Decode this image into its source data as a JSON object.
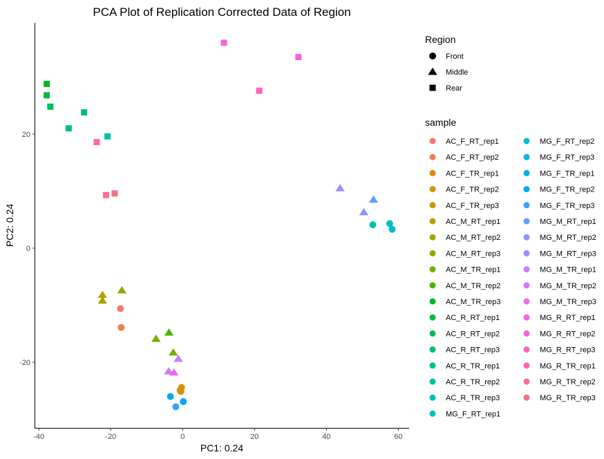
{
  "chart_data": {
    "type": "scatter",
    "title": "PCA Plot of Replication Corrected Data of Region",
    "xlabel": "PC1: 0.24",
    "ylabel": "PC2: 0.24",
    "xlim": [
      -41,
      63
    ],
    "ylim": [
      -31.5,
      39.5
    ],
    "xticks": [
      -40,
      -20,
      0,
      20,
      40,
      60
    ],
    "yticks": [
      -20,
      0,
      20
    ],
    "grid": false,
    "shape_legend": {
      "title": "Region",
      "entries": [
        {
          "label": "Front",
          "shape": "circle"
        },
        {
          "label": "Middle",
          "shape": "triangle"
        },
        {
          "label": "Rear",
          "shape": "square"
        }
      ]
    },
    "color_legend": {
      "title": "sample",
      "placement": "right",
      "columns": 2,
      "entries": [
        {
          "label": "AC_F_RT_rep1",
          "color": "#F8766D"
        },
        {
          "label": "AC_F_RT_rep2",
          "color": "#F07F4F"
        },
        {
          "label": "AC_F_TR_rep1",
          "color": "#E58700"
        },
        {
          "label": "AC_F_TR_rep2",
          "color": "#D89000"
        },
        {
          "label": "AC_F_TR_rep3",
          "color": "#C99800"
        },
        {
          "label": "AC_M_RT_rep1",
          "color": "#B79F00"
        },
        {
          "label": "AC_M_RT_rep2",
          "color": "#A3A500"
        },
        {
          "label": "AC_M_RT_rep3",
          "color": "#8EAB00"
        },
        {
          "label": "AC_M_TR_rep1",
          "color": "#72B000"
        },
        {
          "label": "AC_M_TR_rep2",
          "color": "#4BB400"
        },
        {
          "label": "AC_M_TR_rep3",
          "color": "#00B81F"
        },
        {
          "label": "AC_R_RT_rep1",
          "color": "#00BA42"
        },
        {
          "label": "AC_R_RT_rep2",
          "color": "#00BC59"
        },
        {
          "label": "AC_R_RT_rep3",
          "color": "#00BE6C"
        },
        {
          "label": "AC_R_TR_rep1",
          "color": "#00C08B"
        },
        {
          "label": "AC_R_TR_rep2",
          "color": "#00C0A1"
        },
        {
          "label": "AC_R_TR_rep3",
          "color": "#00C0B5"
        },
        {
          "label": "MG_F_RT_rep1",
          "color": "#00BFC4"
        },
        {
          "label": "MG_F_RT_rep2",
          "color": "#00BBD3"
        },
        {
          "label": "MG_F_RT_rep3",
          "color": "#00B5E2"
        },
        {
          "label": "MG_F_TR_rep1",
          "color": "#00ADED"
        },
        {
          "label": "MG_F_TR_rep2",
          "color": "#00A5FF"
        },
        {
          "label": "MG_F_TR_rep3",
          "color": "#35A2FF"
        },
        {
          "label": "MG_M_RT_rep1",
          "color": "#619CFF"
        },
        {
          "label": "MG_M_RT_rep2",
          "color": "#8B93FF"
        },
        {
          "label": "MG_M_RT_rep3",
          "color": "#A58AFF"
        },
        {
          "label": "MG_M_TR_rep1",
          "color": "#C77CFF"
        },
        {
          "label": "MG_M_TR_rep2",
          "color": "#D575FE"
        },
        {
          "label": "MG_M_TR_rep3",
          "color": "#E76BF3"
        },
        {
          "label": "MG_R_RT_rep1",
          "color": "#F066E9"
        },
        {
          "label": "MG_R_RT_rep2",
          "color": "#FA62DB"
        },
        {
          "label": "MG_R_RT_rep3",
          "color": "#FF62BC"
        },
        {
          "label": "MG_R_TR_rep1",
          "color": "#FF65AE"
        },
        {
          "label": "MG_R_TR_rep2",
          "color": "#FF6C91"
        },
        {
          "label": "MG_R_TR_rep3",
          "color": "#F2727F"
        }
      ]
    },
    "points": [
      {
        "x": 11.5,
        "y": 36.0,
        "shape": "square",
        "color": "#F066E9"
      },
      {
        "x": 32.2,
        "y": 33.5,
        "shape": "square",
        "color": "#FA62DB"
      },
      {
        "x": 21.3,
        "y": 27.6,
        "shape": "square",
        "color": "#FF62BC"
      },
      {
        "x": -37.8,
        "y": 28.8,
        "shape": "square",
        "color": "#00B81F"
      },
      {
        "x": -37.8,
        "y": 26.8,
        "shape": "square",
        "color": "#00BA42"
      },
      {
        "x": -36.8,
        "y": 24.8,
        "shape": "square",
        "color": "#00BC59"
      },
      {
        "x": -27.4,
        "y": 23.8,
        "shape": "square",
        "color": "#00BE6C"
      },
      {
        "x": -31.7,
        "y": 21.0,
        "shape": "square",
        "color": "#00C08B"
      },
      {
        "x": -20.9,
        "y": 19.6,
        "shape": "square",
        "color": "#00C0A1"
      },
      {
        "x": -23.9,
        "y": 18.6,
        "shape": "square",
        "color": "#FF65AE"
      },
      {
        "x": -21.3,
        "y": 9.3,
        "shape": "square",
        "color": "#FF6C91"
      },
      {
        "x": -18.9,
        "y": 9.6,
        "shape": "square",
        "color": "#F2727F"
      },
      {
        "x": 43.8,
        "y": 10.5,
        "shape": "triangle",
        "color": "#A58AFF"
      },
      {
        "x": 53.1,
        "y": 8.5,
        "shape": "triangle",
        "color": "#619CFF"
      },
      {
        "x": 50.4,
        "y": 6.3,
        "shape": "triangle",
        "color": "#8B93FF"
      },
      {
        "x": 52.9,
        "y": 4.1,
        "shape": "circle",
        "color": "#00C0B5"
      },
      {
        "x": 57.6,
        "y": 4.3,
        "shape": "circle",
        "color": "#00BFC4"
      },
      {
        "x": 58.3,
        "y": 3.3,
        "shape": "circle",
        "color": "#00BBD3"
      },
      {
        "x": -22.3,
        "y": -8.2,
        "shape": "triangle",
        "color": "#B79F00"
      },
      {
        "x": -22.3,
        "y": -9.2,
        "shape": "triangle",
        "color": "#A3A500"
      },
      {
        "x": -16.9,
        "y": -7.4,
        "shape": "triangle",
        "color": "#8EAB00"
      },
      {
        "x": -17.3,
        "y": -10.6,
        "shape": "circle",
        "color": "#F8766D"
      },
      {
        "x": -17.1,
        "y": -13.9,
        "shape": "circle",
        "color": "#F07F4F"
      },
      {
        "x": -7.4,
        "y": -15.9,
        "shape": "triangle",
        "color": "#72B000"
      },
      {
        "x": -3.8,
        "y": -14.8,
        "shape": "triangle",
        "color": "#4BB400"
      },
      {
        "x": -2.6,
        "y": -18.3,
        "shape": "triangle",
        "color": "#72B000"
      },
      {
        "x": -1.2,
        "y": -19.4,
        "shape": "triangle",
        "color": "#C77CFF"
      },
      {
        "x": -3.9,
        "y": -21.6,
        "shape": "triangle",
        "color": "#D575FE"
      },
      {
        "x": -2.4,
        "y": -21.8,
        "shape": "triangle",
        "color": "#E76BF3"
      },
      {
        "x": -0.3,
        "y": -24.4,
        "shape": "circle",
        "color": "#D89000"
      },
      {
        "x": -0.5,
        "y": -25.1,
        "shape": "circle",
        "color": "#E58700"
      },
      {
        "x": -0.7,
        "y": -24.9,
        "shape": "circle",
        "color": "#C99800"
      },
      {
        "x": -3.4,
        "y": -26.0,
        "shape": "circle",
        "color": "#00ADED"
      },
      {
        "x": 0.2,
        "y": -26.9,
        "shape": "circle",
        "color": "#00A5FF"
      },
      {
        "x": -1.9,
        "y": -27.8,
        "shape": "circle",
        "color": "#35A2FF"
      }
    ]
  }
}
